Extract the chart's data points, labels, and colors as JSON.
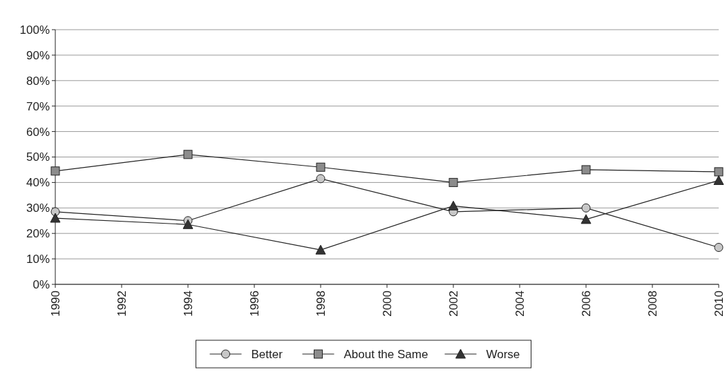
{
  "chart_data": {
    "type": "line",
    "x": [
      1990,
      1994,
      1998,
      2002,
      2006,
      2010
    ],
    "series": [
      {
        "name": "Better",
        "color": "#c8c8c8",
        "marker": "circle",
        "values": [
          28.5,
          25,
          41.5,
          28.5,
          30,
          14.5
        ]
      },
      {
        "name": "About the Same",
        "color": "#8c8c8c",
        "marker": "square",
        "values": [
          44.5,
          51,
          46,
          40,
          45,
          44.2
        ]
      },
      {
        "name": "Worse",
        "color": "#333333",
        "marker": "triangle",
        "values": [
          26,
          23.5,
          13.5,
          30.8,
          25.5,
          40.8
        ]
      }
    ],
    "xlim": [
      1990,
      2010
    ],
    "xticks": [
      1990,
      1992,
      1994,
      1996,
      1998,
      2000,
      2002,
      2004,
      2006,
      2008,
      2010
    ],
    "ylim": [
      0,
      100
    ],
    "yticks": [
      {
        "value": 0,
        "label": "0%"
      },
      {
        "value": 10,
        "label": "10%"
      },
      {
        "value": 20,
        "label": "20%"
      },
      {
        "value": 30,
        "label": "30%"
      },
      {
        "value": 40,
        "label": "40%"
      },
      {
        "value": 50,
        "label": "50%"
      },
      {
        "value": 60,
        "label": "60%"
      },
      {
        "value": 70,
        "label": "70%"
      },
      {
        "value": 80,
        "label": "80%"
      },
      {
        "value": 90,
        "label": "90%"
      },
      {
        "value": 100,
        "label": "100%"
      }
    ],
    "grid": "y",
    "legend": "bottom",
    "line_style": "solid"
  }
}
